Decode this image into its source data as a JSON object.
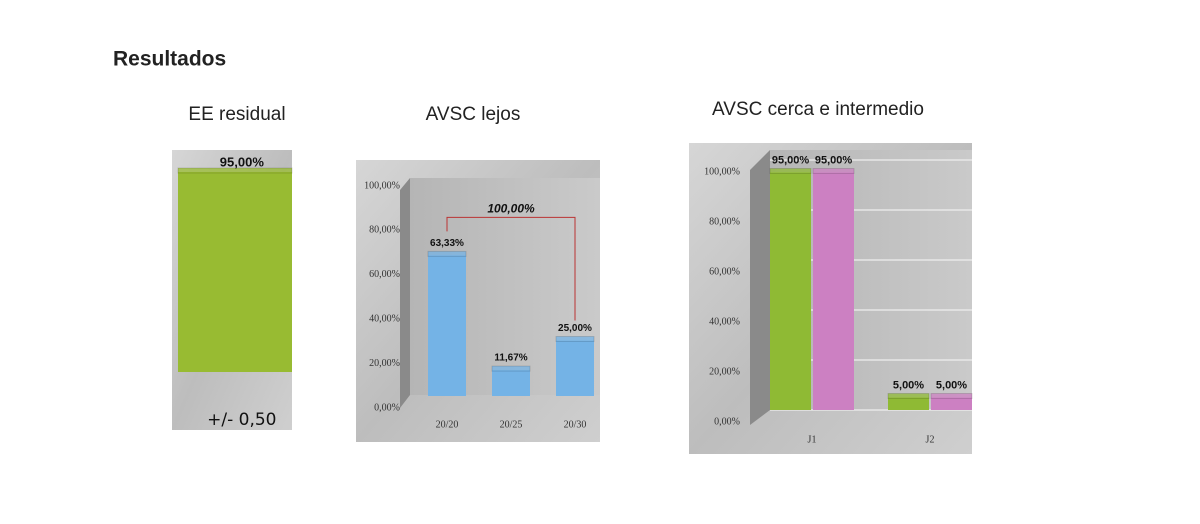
{
  "title": "Resultados",
  "chart_data": [
    {
      "type": "bar",
      "title": "EE residual",
      "categories": [
        "+/- 0,50"
      ],
      "values": [
        95
      ],
      "value_labels": [
        "95,00%"
      ],
      "color": "#98bb32"
    },
    {
      "type": "bar",
      "title": "AVSC lejos",
      "categories": [
        "20/20",
        "20/25",
        "20/30"
      ],
      "values": [
        63.33,
        11.67,
        25
      ],
      "value_labels": [
        "63,33%",
        "11,67%",
        "25,00%"
      ],
      "color": "#74b3e6",
      "annotation": "100,00%",
      "ylim": [
        0,
        100
      ],
      "yticks": [
        {
          "value": 0,
          "label": "0,00%"
        },
        {
          "value": 20,
          "label": "20,00%"
        },
        {
          "value": 40,
          "label": "40,00%"
        },
        {
          "value": 60,
          "label": "60,00%"
        },
        {
          "value": 80,
          "label": "80,00%"
        },
        {
          "value": 100,
          "label": "100,00%"
        }
      ],
      "grid": false
    },
    {
      "type": "grouped_bar",
      "title": "AVSC cerca e intermedio",
      "categories": [
        "J1",
        "J2"
      ],
      "series": [
        {
          "color": "#8fba34",
          "values": [
            95,
            5
          ],
          "value_labels": [
            "95,00%",
            "5,00%"
          ]
        },
        {
          "color": "#cc80c2",
          "values": [
            95,
            5
          ],
          "value_labels": [
            "95,00%",
            "5,00%"
          ]
        }
      ],
      "ylim": [
        0,
        100
      ],
      "yticks": [
        {
          "value": 0,
          "label": "0,00%"
        },
        {
          "value": 20,
          "label": "20,00%"
        },
        {
          "value": 40,
          "label": "40,00%"
        },
        {
          "value": 60,
          "label": "60,00%"
        },
        {
          "value": 80,
          "label": "80,00%"
        },
        {
          "value": 100,
          "label": "100,00%"
        }
      ],
      "grid": true
    }
  ]
}
